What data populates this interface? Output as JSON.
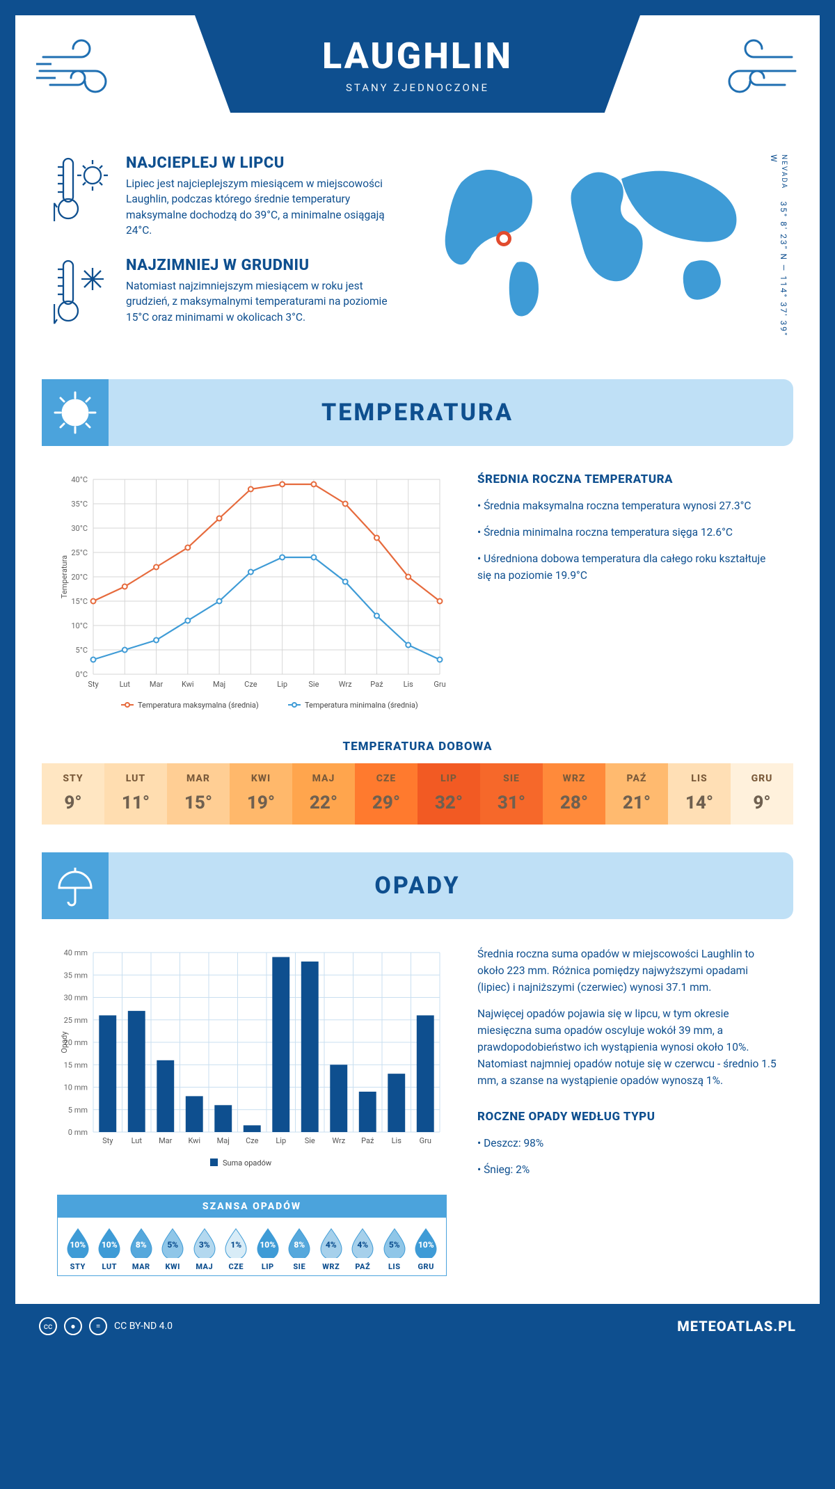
{
  "header": {
    "title": "LAUGHLIN",
    "subtitle": "STANY ZJEDNOCZONE"
  },
  "location": {
    "coords": "35° 8' 23\" N — 114° 37' 39\" W",
    "state": "NEVADA"
  },
  "facts": {
    "hot": {
      "title": "NAJCIEPLEJ W LIPCU",
      "text": "Lipiec jest najcieplejszym miesiącem w miejscowości Laughlin, podczas którego średnie temperatury maksymalne dochodzą do 39°C, a minimalne osiągają 24°C."
    },
    "cold": {
      "title": "NAJZIMNIEJ W GRUDNIU",
      "text": "Natomiast najzimniejszym miesiącem w roku jest grudzień, z maksymalnymi temperaturami na poziomie 15°C oraz minimami w okolicach 3°C."
    }
  },
  "sections": {
    "temperature": "TEMPERATURA",
    "precipitation": "OPADY"
  },
  "temp_chart": {
    "type": "line",
    "months": [
      "Sty",
      "Lut",
      "Mar",
      "Kwi",
      "Maj",
      "Cze",
      "Lip",
      "Sie",
      "Wrz",
      "Paź",
      "Lis",
      "Gru"
    ],
    "max_series": [
      15,
      18,
      22,
      26,
      32,
      38,
      39,
      39,
      35,
      28,
      20,
      15
    ],
    "min_series": [
      3,
      5,
      7,
      11,
      15,
      21,
      24,
      24,
      19,
      12,
      6,
      3
    ],
    "max_color": "#e66a3c",
    "min_color": "#3e9bd6",
    "grid_color": "#d6d6d6",
    "ylim": [
      0,
      40
    ],
    "ytick_step": 5,
    "y_label": "Temperatura",
    "legend_max": "Temperatura maksymalna (średnia)",
    "legend_min": "Temperatura minimalna (średnia)"
  },
  "annual_temp": {
    "title": "ŚREDNIA ROCZNA TEMPERATURA",
    "items": [
      "Średnia maksymalna roczna temperatura wynosi 27.3°C",
      "Średnia minimalna roczna temperatura sięga 12.6°C",
      "Uśredniona dobowa temperatura dla całego roku kształtuje się na poziomie 19.9°C"
    ]
  },
  "daily_temp": {
    "title": "TEMPERATURA DOBOWA",
    "months": [
      "STY",
      "LUT",
      "MAR",
      "KWI",
      "MAJ",
      "CZE",
      "LIP",
      "SIE",
      "WRZ",
      "PAŹ",
      "LIS",
      "GRU"
    ],
    "values": [
      "9°",
      "11°",
      "15°",
      "19°",
      "22°",
      "29°",
      "32°",
      "31°",
      "28°",
      "21°",
      "14°",
      "9°"
    ],
    "colors": [
      "#ffe6c2",
      "#ffddb0",
      "#ffce94",
      "#ffb86b",
      "#ffa54d",
      "#ff7a2e",
      "#f25a23",
      "#f6682a",
      "#ff8a3a",
      "#ffba6f",
      "#ffdfb5",
      "#fff1dc"
    ]
  },
  "precip_chart": {
    "type": "bar",
    "months": [
      "Sty",
      "Lut",
      "Mar",
      "Kwi",
      "Maj",
      "Cze",
      "Lip",
      "Sie",
      "Wrz",
      "Paź",
      "Lis",
      "Gru"
    ],
    "values": [
      26,
      27,
      16,
      8,
      6,
      1.5,
      39,
      38,
      15,
      9,
      13,
      26
    ],
    "bar_color": "#0e4f8f",
    "grid_color": "#c9dff0",
    "ylim": [
      0,
      40
    ],
    "ytick_step": 5,
    "y_label": "Opady",
    "legend": "Suma opadów"
  },
  "precip_text": {
    "p1": "Średnia roczna suma opadów w miejscowości Laughlin to około 223 mm. Różnica pomiędzy najwyższymi opadami (lipiec) i najniższymi (czerwiec) wynosi 37.1 mm.",
    "p2": "Najwięcej opadów pojawia się w lipcu, w tym okresie miesięczna suma opadów oscyluje wokół 39 mm, a prawdopodobieństwo ich wystąpienia wynosi około 10%. Natomiast najmniej opadów notuje się w czerwcu - średnio 1.5 mm, a szanse na wystąpienie opadów wynoszą 1%.",
    "type_title": "ROCZNE OPADY WEDŁUG TYPU",
    "type_items": [
      "Deszcz: 98%",
      "Śnieg: 2%"
    ]
  },
  "rain_chance": {
    "title": "SZANSA OPADÓW",
    "months": [
      "STY",
      "LUT",
      "MAR",
      "KWI",
      "MAJ",
      "CZE",
      "LIP",
      "SIE",
      "WRZ",
      "PAŹ",
      "LIS",
      "GRU"
    ],
    "values": [
      "10%",
      "10%",
      "8%",
      "5%",
      "3%",
      "1%",
      "10%",
      "8%",
      "4%",
      "4%",
      "5%",
      "10%"
    ],
    "fill_colors": [
      "#3e9bd6",
      "#3e9bd6",
      "#56a8dc",
      "#8fc6e8",
      "#b3d8ef",
      "#d8ecf7",
      "#3e9bd6",
      "#56a8dc",
      "#a6d0eb",
      "#a6d0eb",
      "#8fc6e8",
      "#3e9bd6"
    ],
    "text_colors": [
      "#fff",
      "#fff",
      "#fff",
      "#0e4f8f",
      "#0e4f8f",
      "#0e4f8f",
      "#fff",
      "#fff",
      "#0e4f8f",
      "#0e4f8f",
      "#0e4f8f",
      "#fff"
    ]
  },
  "footer": {
    "license": "CC BY-ND 4.0",
    "site": "METEOATLAS.PL"
  }
}
